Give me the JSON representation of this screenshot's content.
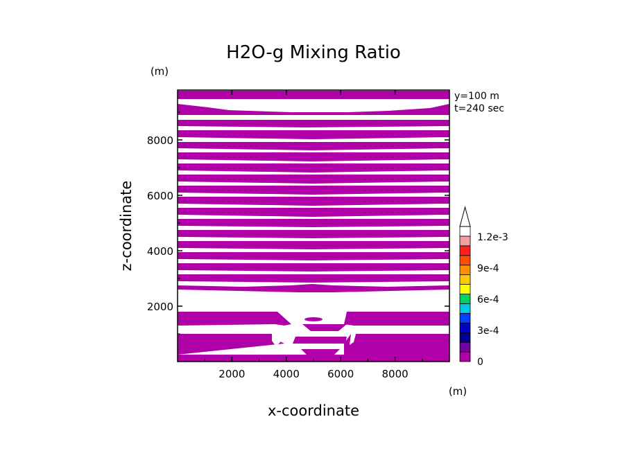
{
  "chart_data": {
    "type": "heatmap",
    "title": "H2O-g Mixing Ratio",
    "xlabel": "x-coordinate",
    "ylabel": "z-coordinate",
    "x_unit": "(m)",
    "y_unit": "(m)",
    "annotations": [
      "y=100 m",
      "t=240 sec"
    ],
    "xlim": [
      0,
      10000
    ],
    "ylim": [
      0,
      9800
    ],
    "xticks": [
      2000,
      4000,
      6000,
      8000
    ],
    "yticks": [
      2000,
      4000,
      6000,
      8000
    ],
    "xtick_labels": [
      "2000",
      "4000",
      "6000",
      "8000"
    ],
    "ytick_labels": [
      "2000",
      "4000",
      "6000",
      "8000"
    ],
    "grid": false,
    "field_color": "#b000a8",
    "background_color": "#ffffff",
    "colorbar": {
      "labels": [
        "0",
        "3e-4",
        "6e-4",
        "9e-4",
        "1.2e-3"
      ],
      "label_values": [
        0,
        0.0003,
        0.0006,
        0.0009,
        0.0012
      ],
      "min": 0,
      "max": 0.0013,
      "step": 0.0001,
      "colors": [
        "#b000a8",
        "#7000a0",
        "#000090",
        "#0000c8",
        "#0040ff",
        "#00c8e8",
        "#00d060",
        "#ffff00",
        "#ffc800",
        "#ff9000",
        "#ff5000",
        "#ff2020",
        "#f0a0a0",
        "#ffffff"
      ],
      "extend": "max"
    }
  }
}
